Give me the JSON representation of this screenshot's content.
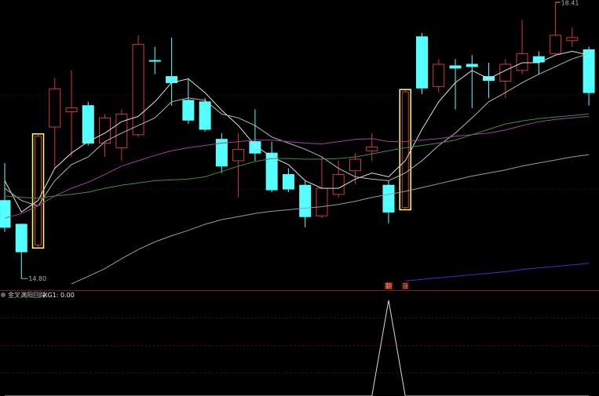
{
  "chart_data": [
    {
      "type": "candlestick",
      "open": [
        15.82,
        15.51,
        15.24,
        16.78,
        16.98,
        17.06,
        16.57,
        16.51,
        16.68,
        17.65,
        17.44,
        17.13,
        17.11,
        16.62,
        16.34,
        16.59,
        16.44,
        16.16,
        16.02,
        15.62,
        15.9,
        16.21,
        16.47,
        16.02,
        15.73,
        17.96,
        17.31,
        17.58,
        17.6,
        17.44,
        17.38,
        17.52,
        17.7,
        17.74,
        17.91,
        17.79
      ],
      "high": [
        16.31,
        15.52,
        16.68,
        17.42,
        17.52,
        17.11,
        16.95,
        17.01,
        17.98,
        17.83,
        17.95,
        17.42,
        17.16,
        16.7,
        16.7,
        17.01,
        16.59,
        16.24,
        16.08,
        16.39,
        16.34,
        16.44,
        16.7,
        16.08,
        17.26,
        18.01,
        17.67,
        17.67,
        17.72,
        17.62,
        17.67,
        18.18,
        17.77,
        18.41,
        18.08,
        17.83
      ],
      "low": [
        15.41,
        14.8,
        15.21,
        16.24,
        16.39,
        16.54,
        16.39,
        16.34,
        16.65,
        17.47,
        17.06,
        16.82,
        16.72,
        16.18,
        15.86,
        16.34,
        15.93,
        15.93,
        15.47,
        15.59,
        15.86,
        16.03,
        16.34,
        15.52,
        15.71,
        17.21,
        17.23,
        17.01,
        17.03,
        17.16,
        17.16,
        17.47,
        17.47,
        17.72,
        17.83,
        17.06
      ],
      "close": [
        15.47,
        15.15,
        16.66,
        17.28,
        17.03,
        16.57,
        16.9,
        16.95,
        17.86,
        17.65,
        17.36,
        16.87,
        16.75,
        16.27,
        16.49,
        16.44,
        15.96,
        15.97,
        15.61,
        15.98,
        16.16,
        16.36,
        16.52,
        15.67,
        17.24,
        17.29,
        17.6,
        17.55,
        17.57,
        17.39,
        17.6,
        17.74,
        17.63,
        17.98,
        17.95,
        17.23
      ],
      "up_color": "#d03a3a",
      "down_color": "#54ffff",
      "highlight_color": "#ffff66",
      "highlight": [
        false,
        false,
        true,
        false,
        false,
        false,
        false,
        false,
        false,
        false,
        false,
        false,
        false,
        false,
        false,
        false,
        false,
        false,
        false,
        false,
        false,
        false,
        false,
        false,
        true,
        false,
        false,
        false,
        false,
        false,
        false,
        false,
        false,
        false,
        false,
        false
      ],
      "signals": [
        null,
        null,
        null,
        null,
        null,
        null,
        null,
        null,
        null,
        null,
        null,
        null,
        null,
        null,
        null,
        null,
        null,
        null,
        null,
        null,
        null,
        null,
        null,
        "翻",
        "涨",
        null,
        null,
        null,
        null,
        null,
        null,
        null,
        null,
        null,
        null,
        null
      ],
      "ylim": [
        14.67,
        18.44
      ],
      "max_label": 18.41,
      "min_label": {
        "value": 14.8,
        "label": "14.80"
      },
      "series": [
        {
          "color": "#e0e0e0",
          "values": [
            16.08,
            15.67,
            15.82,
            16.24,
            16.44,
            16.59,
            16.7,
            16.85,
            16.92,
            17.11,
            17.36,
            17.41,
            17.23,
            17.0,
            16.8,
            16.54,
            16.39,
            16.29,
            16.08,
            15.98,
            15.98,
            16.1,
            16.18,
            16.13,
            16.34,
            16.75,
            17.11,
            17.36,
            17.52,
            17.41,
            17.52,
            17.62,
            17.62,
            17.72,
            17.77,
            17.72
          ]
        },
        {
          "color": "#b8b8b8",
          "values": [
            15.98,
            15.82,
            15.75,
            16.08,
            16.29,
            16.39,
            16.59,
            16.7,
            16.8,
            16.9,
            17.11,
            17.16,
            17.13,
            16.95,
            16.9,
            16.8,
            16.65,
            16.57,
            16.49,
            16.39,
            16.24,
            16.13,
            16.1,
            16.08,
            16.18,
            16.34,
            16.54,
            16.7,
            16.9,
            17.11,
            17.23,
            17.36,
            17.47,
            17.57,
            17.67,
            17.74
          ]
        },
        {
          "color": "#a040a0",
          "values": [
            15.59,
            15.65,
            15.75,
            15.88,
            15.98,
            16.06,
            16.16,
            16.27,
            16.34,
            16.41,
            16.47,
            16.51,
            16.54,
            16.57,
            16.59,
            16.61,
            16.61,
            16.59,
            16.57,
            16.56,
            16.59,
            16.62,
            16.63,
            16.59,
            16.59,
            16.61,
            16.63,
            16.66,
            16.68,
            16.7,
            16.74,
            16.8,
            16.85,
            16.88,
            16.9,
            16.92
          ]
        },
        {
          "color": "#3f8f3f",
          "values": [
            15.88,
            15.86,
            15.85,
            15.88,
            15.9,
            15.93,
            15.98,
            16.02,
            16.05,
            16.08,
            16.09,
            16.1,
            16.13,
            16.2,
            16.27,
            16.33,
            16.37,
            16.37,
            16.36,
            16.36,
            16.37,
            16.39,
            16.43,
            16.47,
            16.51,
            16.54,
            16.57,
            16.61,
            16.68,
            16.75,
            16.82,
            16.86,
            16.89,
            16.91,
            16.93,
            16.95
          ]
        },
        {
          "color": "#9a9a9a",
          "values": [
            null,
            null,
            null,
            null,
            14.73,
            14.83,
            14.93,
            15.06,
            15.18,
            15.28,
            15.36,
            15.43,
            15.51,
            15.57,
            15.61,
            15.65,
            15.68,
            15.7,
            15.72,
            15.74,
            15.77,
            15.81,
            15.86,
            15.9,
            15.94,
            15.99,
            16.04,
            16.09,
            16.14,
            16.18,
            16.22,
            16.27,
            16.31,
            16.35,
            16.39,
            16.42
          ]
        },
        {
          "color": "#3434c8",
          "values": [
            null,
            null,
            null,
            null,
            null,
            null,
            null,
            null,
            null,
            null,
            null,
            null,
            null,
            null,
            null,
            null,
            null,
            null,
            null,
            null,
            null,
            null,
            null,
            null,
            14.77,
            14.79,
            14.81,
            14.83,
            14.85,
            14.87,
            14.89,
            14.92,
            14.94,
            14.96,
            14.98,
            15.0
          ]
        }
      ]
    },
    {
      "type": "line",
      "title": "金叉满阳回踩",
      "legend_text": "XG1: 0.00",
      "color": "#d8d8d8",
      "ylim": [
        0,
        1.09
      ],
      "values": [
        0,
        0,
        0,
        0,
        0,
        0,
        0,
        0,
        0,
        0,
        0,
        0,
        0,
        0,
        0,
        0,
        0,
        0,
        0,
        0,
        0,
        0,
        0,
        1,
        0,
        0,
        0,
        0,
        0,
        0,
        0,
        0,
        0,
        0,
        0,
        0
      ]
    }
  ]
}
